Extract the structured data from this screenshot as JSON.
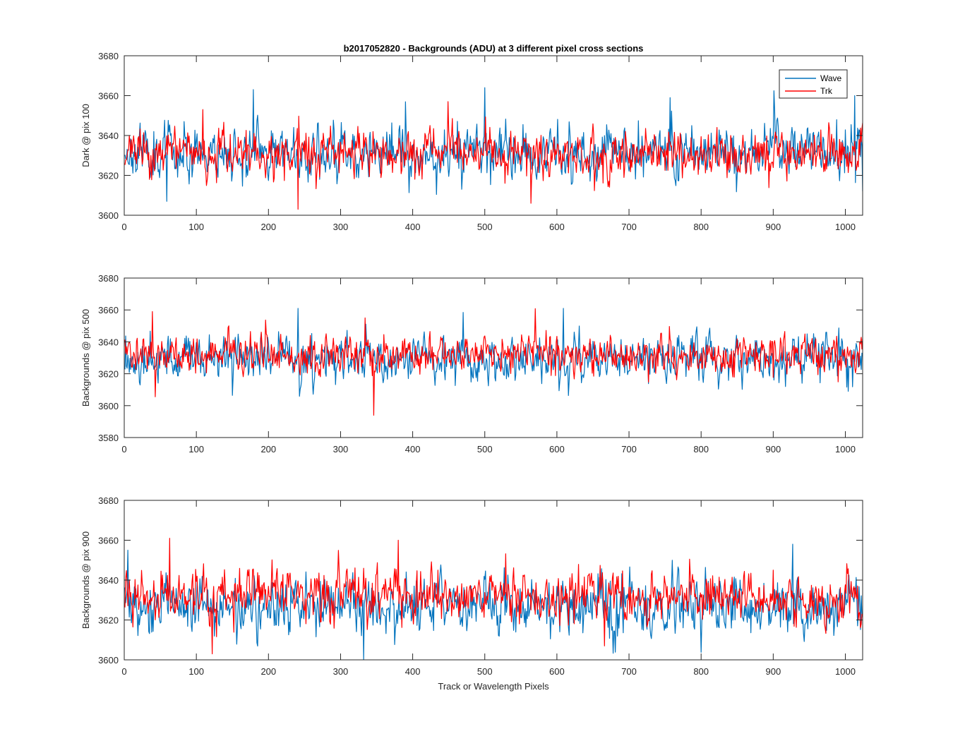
{
  "chart_data": [
    {
      "type": "line",
      "title": "b2017052820 - Backgrounds (ADU) at 3 different pixel cross sections",
      "xlabel": "",
      "ylabel": "Dark @ pix 100",
      "xlim": [
        0,
        1024
      ],
      "ylim": [
        3600,
        3680
      ],
      "xticks": [
        "0",
        "100",
        "200",
        "300",
        "400",
        "500",
        "600",
        "700",
        "800",
        "900",
        "1000"
      ],
      "yticks": [
        "3600",
        "3620",
        "3640",
        "3660",
        "3680"
      ],
      "x_count": 1024,
      "legend": {
        "position": "top-right",
        "entries": [
          "Wave",
          "Trk"
        ]
      },
      "series": [
        {
          "name": "Wave",
          "color": "#0072BD",
          "mean": 3632,
          "spread": 6.5,
          "seed": 11,
          "spikes": [
            {
              "x": 178,
              "y": 3663
            },
            {
              "x": 499,
              "y": 3664
            },
            {
              "x": 58,
              "y": 3607
            },
            {
              "x": 1012,
              "y": 3660
            },
            {
              "x": 756,
              "y": 3659
            },
            {
              "x": 1023,
              "y": 3612
            }
          ]
        },
        {
          "name": "Trk",
          "color": "#FF0000",
          "mean": 3631,
          "spread": 5.5,
          "seed": 23,
          "spikes": [
            {
              "x": 240,
              "y": 3603
            },
            {
              "x": 448,
              "y": 3657
            },
            {
              "x": 563,
              "y": 3606
            },
            {
              "x": 108,
              "y": 3653
            }
          ]
        }
      ]
    },
    {
      "type": "line",
      "title": "",
      "xlabel": "",
      "ylabel": "Backgrounds @ pix 500",
      "xlim": [
        0,
        1024
      ],
      "ylim": [
        3580,
        3680
      ],
      "xticks": [
        "0",
        "100",
        "200",
        "300",
        "400",
        "500",
        "600",
        "700",
        "800",
        "900",
        "1000"
      ],
      "yticks": [
        "3580",
        "3600",
        "3620",
        "3640",
        "3660",
        "3680"
      ],
      "x_count": 1024,
      "series": [
        {
          "name": "Wave",
          "color": "#0072BD",
          "mean": 3630,
          "spread": 7,
          "seed": 37,
          "spikes": [
            {
              "x": 240,
              "y": 3661
            },
            {
              "x": 608,
              "y": 3661
            },
            {
              "x": 1003,
              "y": 3609
            }
          ]
        },
        {
          "name": "Trk",
          "color": "#FF0000",
          "mean": 3632,
          "spread": 6,
          "seed": 41,
          "spikes": [
            {
              "x": 345,
              "y": 3594
            },
            {
              "x": 38,
              "y": 3659
            },
            {
              "x": 333,
              "y": 3655
            }
          ]
        }
      ]
    },
    {
      "type": "line",
      "title": "",
      "xlabel": "Track or Wavelength Pixels",
      "ylabel": "Backgrounds @ pix 900",
      "xlim": [
        0,
        1024
      ],
      "ylim": [
        3600,
        3680
      ],
      "xticks": [
        "0",
        "100",
        "200",
        "300",
        "400",
        "500",
        "600",
        "700",
        "800",
        "900",
        "1000"
      ],
      "yticks": [
        "3600",
        "3620",
        "3640",
        "3660",
        "3680"
      ],
      "x_count": 1024,
      "series": [
        {
          "name": "Wave",
          "color": "#0072BD",
          "mean": 3627,
          "spread": 7,
          "seed": 53,
          "spikes": [
            {
              "x": 331,
              "y": 3600
            },
            {
              "x": 926,
              "y": 3658
            },
            {
              "x": 4,
              "y": 3655
            }
          ]
        },
        {
          "name": "Trk",
          "color": "#FF0000",
          "mean": 3632,
          "spread": 6,
          "seed": 67,
          "spikes": [
            {
              "x": 62,
              "y": 3661
            },
            {
              "x": 121,
              "y": 3603
            },
            {
              "x": 379,
              "y": 3660
            },
            {
              "x": 665,
              "y": 3607
            }
          ]
        }
      ]
    }
  ]
}
